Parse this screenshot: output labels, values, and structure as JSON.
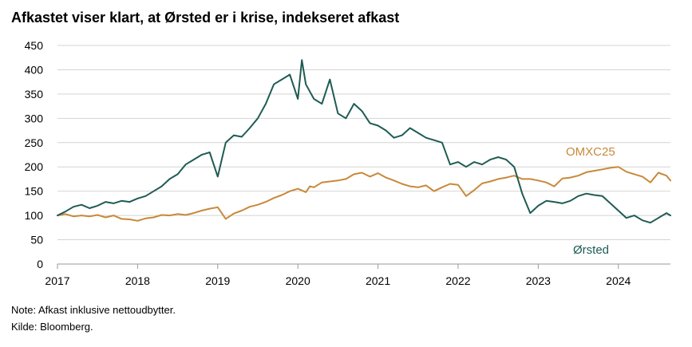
{
  "chart_data": {
    "type": "line",
    "title": "Afkastet viser klart, at Ørsted er i krise, indekseret afkast",
    "xlabel": "",
    "ylabel": "",
    "xlim": [
      2017.0,
      2024.65
    ],
    "ylim": [
      0,
      450
    ],
    "yticks": [
      0,
      50,
      100,
      150,
      200,
      250,
      300,
      350,
      400,
      450
    ],
    "xticks": [
      "2017",
      "2018",
      "2019",
      "2020",
      "2021",
      "2022",
      "2023",
      "2024"
    ],
    "grid": true,
    "series": [
      {
        "name": "OMXC25",
        "color": "#c8893a",
        "x": [
          2017.0,
          2017.1,
          2017.2,
          2017.3,
          2017.4,
          2017.5,
          2017.6,
          2017.7,
          2017.8,
          2017.9,
          2018.0,
          2018.1,
          2018.2,
          2018.3,
          2018.4,
          2018.5,
          2018.6,
          2018.7,
          2018.8,
          2018.9,
          2019.0,
          2019.1,
          2019.2,
          2019.3,
          2019.4,
          2019.5,
          2019.6,
          2019.7,
          2019.8,
          2019.9,
          2020.0,
          2020.1,
          2020.15,
          2020.2,
          2020.3,
          2020.4,
          2020.5,
          2020.6,
          2020.7,
          2020.8,
          2020.9,
          2021.0,
          2021.1,
          2021.2,
          2021.3,
          2021.4,
          2021.5,
          2021.6,
          2021.7,
          2021.8,
          2021.9,
          2022.0,
          2022.1,
          2022.2,
          2022.3,
          2022.4,
          2022.5,
          2022.6,
          2022.7,
          2022.8,
          2022.9,
          2023.0,
          2023.1,
          2023.2,
          2023.3,
          2023.4,
          2023.5,
          2023.6,
          2023.7,
          2023.8,
          2023.9,
          2024.0,
          2024.1,
          2024.2,
          2024.3,
          2024.4,
          2024.5,
          2024.6,
          2024.65
        ],
        "values": [
          100,
          103,
          98,
          100,
          98,
          101,
          96,
          100,
          93,
          92,
          89,
          94,
          96,
          101,
          100,
          103,
          101,
          105,
          110,
          114,
          117,
          93,
          104,
          110,
          118,
          122,
          128,
          136,
          142,
          150,
          155,
          148,
          160,
          158,
          168,
          170,
          172,
          175,
          185,
          188,
          180,
          187,
          178,
          172,
          165,
          160,
          158,
          162,
          150,
          158,
          165,
          163,
          140,
          152,
          166,
          170,
          175,
          178,
          182,
          175,
          175,
          172,
          168,
          160,
          176,
          178,
          182,
          189,
          192,
          195,
          198,
          200,
          190,
          185,
          180,
          168,
          188,
          182,
          172
        ]
      },
      {
        "name": "Ørsted",
        "color": "#1e5c53",
        "x": [
          2017.0,
          2017.1,
          2017.2,
          2017.3,
          2017.4,
          2017.5,
          2017.6,
          2017.7,
          2017.8,
          2017.9,
          2018.0,
          2018.1,
          2018.2,
          2018.3,
          2018.4,
          2018.5,
          2018.6,
          2018.7,
          2018.8,
          2018.9,
          2019.0,
          2019.1,
          2019.2,
          2019.3,
          2019.4,
          2019.5,
          2019.6,
          2019.7,
          2019.8,
          2019.9,
          2020.0,
          2020.05,
          2020.1,
          2020.2,
          2020.3,
          2020.4,
          2020.5,
          2020.6,
          2020.7,
          2020.8,
          2020.9,
          2021.0,
          2021.1,
          2021.2,
          2021.3,
          2021.4,
          2021.5,
          2021.6,
          2021.7,
          2021.8,
          2021.9,
          2022.0,
          2022.1,
          2022.2,
          2022.3,
          2022.4,
          2022.5,
          2022.6,
          2022.7,
          2022.8,
          2022.9,
          2023.0,
          2023.1,
          2023.2,
          2023.3,
          2023.4,
          2023.5,
          2023.6,
          2023.7,
          2023.8,
          2023.9,
          2024.0,
          2024.1,
          2024.2,
          2024.3,
          2024.4,
          2024.5,
          2024.6,
          2024.65
        ],
        "values": [
          100,
          108,
          118,
          122,
          115,
          120,
          128,
          125,
          130,
          128,
          135,
          140,
          150,
          160,
          175,
          185,
          205,
          215,
          225,
          230,
          180,
          250,
          265,
          262,
          280,
          300,
          330,
          370,
          380,
          390,
          340,
          420,
          370,
          340,
          330,
          380,
          310,
          300,
          330,
          315,
          290,
          285,
          275,
          260,
          265,
          280,
          270,
          260,
          255,
          250,
          205,
          210,
          200,
          210,
          205,
          215,
          220,
          215,
          200,
          145,
          105,
          120,
          130,
          128,
          125,
          130,
          140,
          145,
          142,
          140,
          125,
          110,
          95,
          100,
          90,
          85,
          95,
          105,
          100
        ]
      }
    ]
  },
  "note": "Note: Afkast inklusive nettoudbytter.",
  "source": "Kilde: Bloomberg."
}
